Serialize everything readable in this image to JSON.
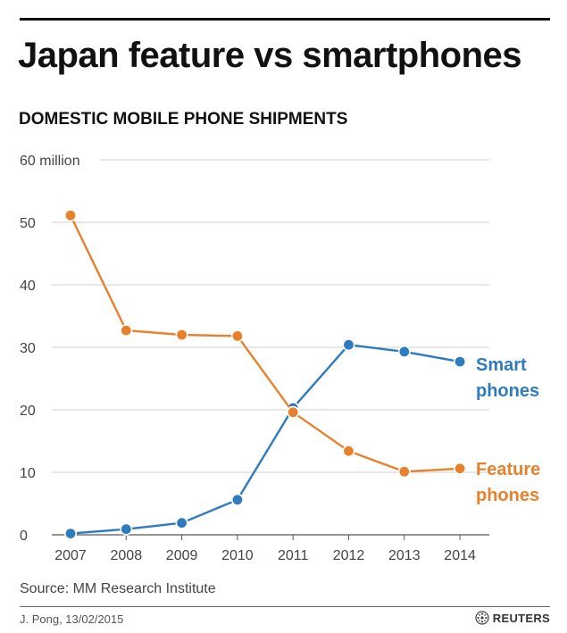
{
  "header": {
    "title": "Japan feature vs smartphones",
    "subtitle": "DOMESTIC MOBILE PHONE SHIPMENTS"
  },
  "footer": {
    "source": "Source: MM Research Institute",
    "credit": "J. Pong, 13/02/2015",
    "brand": "REUTERS"
  },
  "chart_data": {
    "type": "line",
    "x": [
      "2007",
      "2008",
      "2009",
      "2010",
      "2011",
      "2012",
      "2013",
      "2014"
    ],
    "y_ticks": [
      0,
      10,
      20,
      30,
      40,
      50,
      60
    ],
    "y_tick_labels": [
      "0",
      "10",
      "20",
      "30",
      "40",
      "50",
      "60 million"
    ],
    "ylim": [
      0,
      60
    ],
    "grid": true,
    "series": [
      {
        "name": "Smart phones",
        "label_lines": [
          "Smart",
          "phones"
        ],
        "color": "#2e7bbf",
        "values": [
          0.2,
          0.9,
          1.9,
          5.6,
          20.3,
          30.4,
          29.3,
          27.7
        ]
      },
      {
        "name": "Feature phones",
        "label_lines": [
          "Feature",
          "phones"
        ],
        "color": "#e8812b",
        "values": [
          51.1,
          32.7,
          32.0,
          31.8,
          19.6,
          13.4,
          10.1,
          10.6
        ]
      }
    ]
  }
}
